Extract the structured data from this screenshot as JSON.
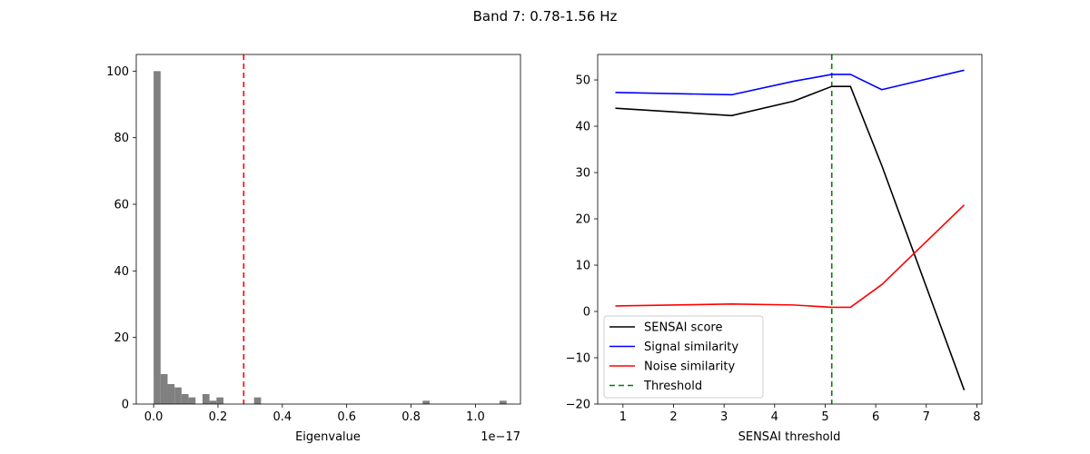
{
  "figure": {
    "title": "Band 7: 0.78-1.56 Hz"
  },
  "chart_data": [
    {
      "type": "bar",
      "subtype": "histogram",
      "title": "",
      "xlabel": "Eigenvalue",
      "ylabel": "",
      "x_offset_text": "1e−17",
      "xlim": [
        -0.054,
        1.14
      ],
      "ylim": [
        0,
        105
      ],
      "xticks": [
        0.0,
        0.2,
        0.4,
        0.6,
        0.8,
        1.0
      ],
      "xtick_labels": [
        "0.0",
        "0.2",
        "0.4",
        "0.6",
        "0.8",
        "1.0"
      ],
      "yticks": [
        0,
        20,
        40,
        60,
        80,
        100
      ],
      "ytick_labels": [
        "0",
        "20",
        "40",
        "60",
        "80",
        "100"
      ],
      "bin_width": 0.0217,
      "bins": [
        {
          "x": 0.0,
          "count": 100
        },
        {
          "x": 0.0217,
          "count": 9
        },
        {
          "x": 0.0434,
          "count": 6
        },
        {
          "x": 0.0651,
          "count": 5
        },
        {
          "x": 0.0868,
          "count": 3
        },
        {
          "x": 0.1085,
          "count": 2
        },
        {
          "x": 0.1519,
          "count": 3
        },
        {
          "x": 0.1736,
          "count": 1
        },
        {
          "x": 0.1953,
          "count": 2
        },
        {
          "x": 0.3121,
          "count": 2
        },
        {
          "x": 0.8359,
          "count": 1
        },
        {
          "x": 1.0752,
          "count": 1
        }
      ],
      "threshold_x": 0.28,
      "colors": {
        "bars": "#808080",
        "threshold": "#ff0000"
      },
      "grid": false
    },
    {
      "type": "line",
      "title": "",
      "xlabel": "SENSAI threshold",
      "ylabel": "",
      "xlim": [
        0.5,
        8.1
      ],
      "ylim": [
        -20,
        55.5
      ],
      "xticks": [
        1,
        2,
        3,
        4,
        5,
        6,
        7,
        8
      ],
      "xtick_labels": [
        "1",
        "2",
        "3",
        "4",
        "5",
        "6",
        "7",
        "8"
      ],
      "yticks": [
        -20,
        -10,
        0,
        10,
        20,
        30,
        40,
        50
      ],
      "ytick_labels": [
        "−20",
        "−10",
        "0",
        "10",
        "20",
        "30",
        "40",
        "50"
      ],
      "x": [
        0.85,
        3.15,
        4.37,
        5.13,
        5.5,
        6.12,
        7.75
      ],
      "series": [
        {
          "name": "SENSAI score",
          "color": "#000000",
          "values": [
            43.9,
            42.3,
            45.4,
            48.6,
            48.6,
            31.5,
            -17.0
          ]
        },
        {
          "name": "Signal similarity",
          "color": "#0000ff",
          "values": [
            47.3,
            46.8,
            49.7,
            51.2,
            51.2,
            47.9,
            52.1
          ]
        },
        {
          "name": "Noise similarity",
          "color": "#ff0000",
          "values": [
            1.2,
            1.6,
            1.4,
            0.9,
            0.9,
            5.8,
            23.0
          ]
        }
      ],
      "threshold": {
        "name": "Threshold",
        "x": 5.13,
        "color": "#008000"
      },
      "legend_position": "lower-left",
      "grid": false
    }
  ]
}
